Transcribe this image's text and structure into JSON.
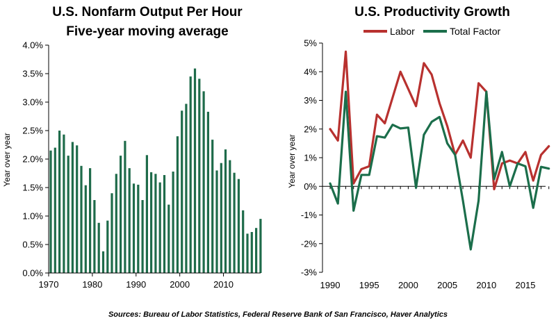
{
  "charts": {
    "colors": {
      "bar": "#1e6b4a",
      "labor": "#b8312f",
      "total_factor": "#1b6e4b",
      "axis": "#000000"
    },
    "source": "Sources: Bureau of Labor Statistics, Federal Reserve Bank of San Francisco, Haver Analytics"
  },
  "chart_data": [
    {
      "type": "bar",
      "title": "U.S. Nonfarm Output Per Hour",
      "subtitle": "Five-year moving average",
      "xlabel": "",
      "ylabel": "Year over year",
      "ylim": [
        0.0,
        4.0
      ],
      "xlim": [
        1970,
        2018
      ],
      "y_ticks": [
        "0.0%",
        "0.5%",
        "1.0%",
        "1.5%",
        "2.0%",
        "2.5%",
        "3.0%",
        "3.5%",
        "4.0%"
      ],
      "x_ticks": [
        "1970",
        "1980",
        "1990",
        "2000",
        "2010"
      ],
      "grid": false,
      "categories": [
        1970,
        1971,
        1972,
        1973,
        1974,
        1975,
        1976,
        1977,
        1978,
        1979,
        1980,
        1981,
        1982,
        1983,
        1984,
        1985,
        1986,
        1987,
        1988,
        1989,
        1990,
        1991,
        1992,
        1993,
        1994,
        1995,
        1996,
        1997,
        1998,
        1999,
        2000,
        2001,
        2002,
        2003,
        2004,
        2005,
        2006,
        2007,
        2008,
        2009,
        2010,
        2011,
        2012,
        2013,
        2014,
        2015,
        2016,
        2017,
        2018
      ],
      "values": [
        2.15,
        2.2,
        2.5,
        2.43,
        2.06,
        2.3,
        2.24,
        1.88,
        1.54,
        1.84,
        1.28,
        0.88,
        0.38,
        0.92,
        1.4,
        1.74,
        2.06,
        2.32,
        1.84,
        1.57,
        1.55,
        1.28,
        2.07,
        1.77,
        1.74,
        1.59,
        1.72,
        1.2,
        1.78,
        2.4,
        2.85,
        2.97,
        3.45,
        3.59,
        3.41,
        3.19,
        2.83,
        2.34,
        1.8,
        1.93,
        2.17,
        1.98,
        1.76,
        1.65,
        1.1,
        0.69,
        0.72,
        0.79,
        0.95
      ]
    },
    {
      "type": "line",
      "title": "U.S. Productivity Growth",
      "xlabel": "",
      "ylabel": "Year over year",
      "ylim": [
        -3,
        5
      ],
      "xlim": [
        1990,
        2018
      ],
      "y_ticks": [
        "-3%",
        "-2%",
        "-1%",
        "0%",
        "1%",
        "2%",
        "3%",
        "4%",
        "5%"
      ],
      "x_ticks": [
        "1990",
        "1995",
        "2000",
        "2005",
        "2010",
        "2015"
      ],
      "grid": false,
      "legend": "top",
      "x": [
        1990,
        1991,
        1992,
        1993,
        1994,
        1995,
        1996,
        1997,
        1998,
        1999,
        2000,
        2001,
        2002,
        2003,
        2004,
        2005,
        2006,
        2007,
        2008,
        2009,
        2010,
        2011,
        2012,
        2013,
        2014,
        2015,
        2016,
        2017,
        2018
      ],
      "series": [
        {
          "name": "Labor",
          "values": [
            2.0,
            1.6,
            4.7,
            0.1,
            0.6,
            0.7,
            2.5,
            2.2,
            3.1,
            4.0,
            3.4,
            2.8,
            4.3,
            3.9,
            2.9,
            2.1,
            1.1,
            1.6,
            1.0,
            3.6,
            3.3,
            -0.1,
            0.8,
            0.9,
            0.8,
            1.2,
            0.2,
            1.1,
            1.4
          ]
        },
        {
          "name": "Total Factor",
          "values": [
            0.1,
            -0.6,
            3.3,
            -0.85,
            0.4,
            0.4,
            1.75,
            1.7,
            2.15,
            2.02,
            2.05,
            -0.05,
            1.8,
            2.25,
            2.42,
            1.5,
            1.1,
            -0.5,
            -2.2,
            -0.5,
            3.3,
            0.25,
            1.2,
            0.0,
            0.8,
            0.7,
            -0.75,
            0.68,
            0.62
          ]
        }
      ]
    }
  ]
}
